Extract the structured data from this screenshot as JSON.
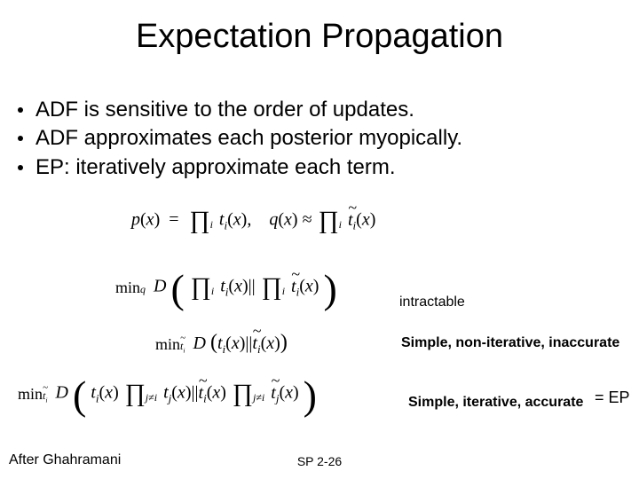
{
  "title": "Expectation Propagation",
  "bullets": [
    "ADF is sensitive to the order of updates.",
    "ADF approximates each posterior myopically.",
    "EP: iteratively approximate each term."
  ],
  "eq": {
    "p": "p",
    "x": "x",
    "q": "q",
    "D": "D",
    "t": "t",
    "ttilde": "t",
    "i": "i",
    "j": "j",
    "eq": "=",
    "approx": "≈",
    "comma": ",",
    "min": "min",
    "prod": "∏",
    "bars": "||",
    "lparen": "(",
    "rparen": ")",
    "sub_i": "i",
    "sub_j_neq_i": "j≠i",
    "sub_ti": "t̃ᵢ",
    "sub_q": "q"
  },
  "annot": {
    "intractable": "intractable",
    "simple_noniter": "Simple, non-iterative, inaccurate",
    "simple_iter": "Simple, iterative, accurate",
    "eqEP": "= EP"
  },
  "credit": "After Ghahramani",
  "pagenum": "SP 2-26",
  "style": {
    "background_color": "#ffffff",
    "text_color": "#000000",
    "title_fontsize": 38,
    "bullet_fontsize": 24,
    "annot_fontsize": 16,
    "credit_fontsize": 16,
    "pagenum_fontsize": 14,
    "math_font": "Times New Roman, serif"
  }
}
